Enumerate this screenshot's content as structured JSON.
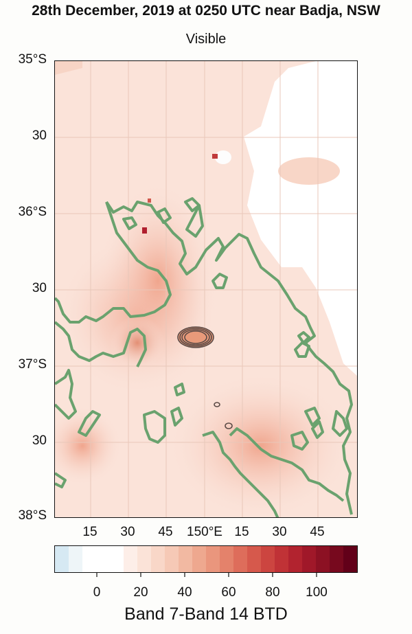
{
  "figure": {
    "title": "28th December, 2019 at 0250 UTC near Badja, NSW",
    "subtitle": "Visible"
  },
  "map": {
    "lat_labels": [
      "35°S",
      "30",
      "36°S",
      "30",
      "37°S",
      "30",
      "38°S"
    ],
    "lon_labels": [
      "15",
      "30",
      "45",
      "150°E",
      "15",
      "30",
      "45"
    ],
    "fire_contour_color": "#5a4a46",
    "boundary_color": "#6aa26e"
  },
  "colorbar": {
    "ticks": [
      "0",
      "20",
      "40",
      "60",
      "80",
      "100"
    ],
    "label": "Band 7-Band 14 BTD",
    "colors": [
      "#d6e9f3",
      "#eef5f8",
      "#ffffff",
      "#ffffff",
      "#ffffff",
      "#fdeee8",
      "#fbe3d8",
      "#f9d7c8",
      "#f6c9b6",
      "#f2b9a2",
      "#eea88f",
      "#ea967d",
      "#e4826b",
      "#de6d5b",
      "#d6594c",
      "#cc4540",
      "#c03236",
      "#b2232f",
      "#a01829",
      "#8c1123",
      "#77091e",
      "#620019"
    ]
  }
}
